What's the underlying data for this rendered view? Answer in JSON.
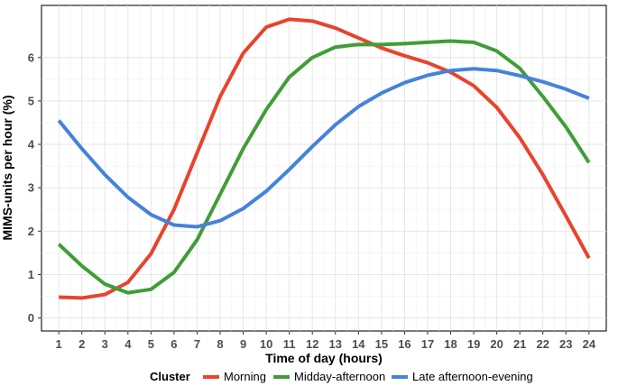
{
  "chart_data": {
    "type": "line",
    "xlabel": "Time of day (hours)",
    "ylabel": "MIMS-units per hour (%)",
    "x": [
      1,
      2,
      3,
      4,
      5,
      6,
      7,
      8,
      9,
      10,
      11,
      12,
      13,
      14,
      15,
      16,
      17,
      18,
      19,
      20,
      21,
      22,
      23,
      24
    ],
    "xlim": [
      0.25,
      24.75
    ],
    "ylim": [
      -0.3,
      7.2
    ],
    "yticks": [
      0,
      1,
      2,
      3,
      4,
      5,
      6
    ],
    "grid": true,
    "legend": {
      "title": "Cluster",
      "position": "bottom"
    },
    "series": [
      {
        "name": "Morning",
        "color": "#E8432D",
        "values": [
          0.48,
          0.46,
          0.54,
          0.82,
          1.48,
          2.5,
          3.8,
          5.1,
          6.1,
          6.7,
          6.88,
          6.84,
          6.68,
          6.45,
          6.22,
          6.04,
          5.88,
          5.66,
          5.35,
          4.85,
          4.15,
          3.3,
          2.35,
          1.38
        ]
      },
      {
        "name": "Midday-afternoon",
        "color": "#3F9E35",
        "values": [
          1.7,
          1.2,
          0.78,
          0.58,
          0.66,
          1.05,
          1.8,
          2.85,
          3.9,
          4.8,
          5.55,
          6.0,
          6.24,
          6.3,
          6.3,
          6.32,
          6.35,
          6.38,
          6.35,
          6.15,
          5.75,
          5.1,
          4.4,
          3.58
        ]
      },
      {
        "name": "Late afternoon-evening",
        "color": "#4682DC",
        "values": [
          4.55,
          3.9,
          3.3,
          2.78,
          2.38,
          2.14,
          2.1,
          2.24,
          2.52,
          2.92,
          3.42,
          3.95,
          4.45,
          4.87,
          5.18,
          5.42,
          5.59,
          5.7,
          5.74,
          5.7,
          5.58,
          5.44,
          5.27,
          5.06
        ]
      }
    ]
  }
}
